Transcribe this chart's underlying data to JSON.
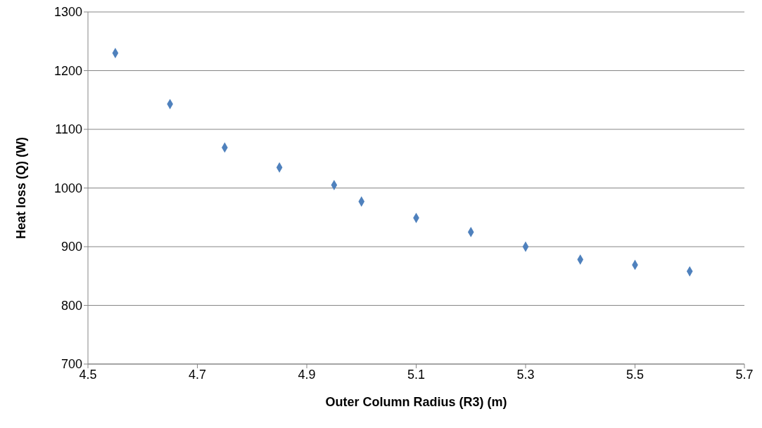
{
  "chart_data": {
    "type": "scatter",
    "xlabel": "Outer Column Radius (R3) (m)",
    "ylabel": "Heat loss (Q) (W)",
    "x": [
      4.55,
      4.65,
      4.75,
      4.85,
      4.95,
      5.0,
      5.1,
      5.2,
      5.3,
      5.4,
      5.5,
      5.6
    ],
    "series": [
      {
        "color": "#4f81bd",
        "values": [
          1230,
          1143,
          1069,
          1035,
          1005,
          977,
          949,
          925,
          900,
          878,
          869,
          858
        ]
      }
    ],
    "xlim": [
      4.5,
      5.7
    ],
    "xticks": [
      4.5,
      4.7,
      4.9,
      5.1,
      5.3,
      5.5,
      5.7
    ],
    "ylim": [
      700,
      1300
    ],
    "yticks": [
      700,
      800,
      900,
      1000,
      1100,
      1200,
      1300
    ],
    "grid": "y",
    "marker": "diamond"
  }
}
